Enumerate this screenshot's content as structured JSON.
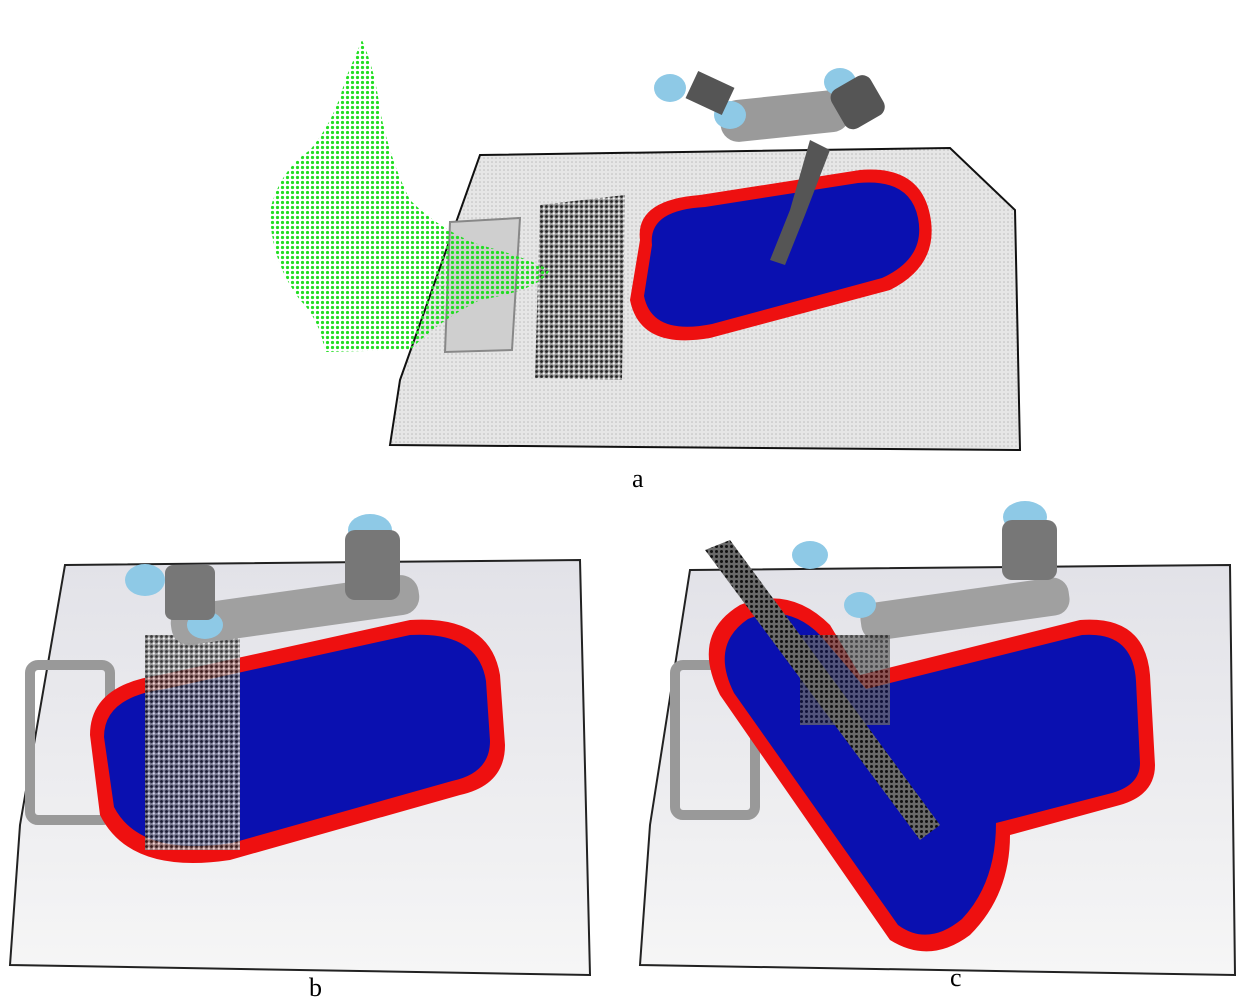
{
  "figure": {
    "panels": [
      {
        "label": "a"
      },
      {
        "label": "b"
      },
      {
        "label": "c"
      }
    ]
  },
  "colors": {
    "workspace_surface": "#d9d9d9",
    "safety_zone_inner": "#0a10b0",
    "safety_zone_border": "#ee1010",
    "human_points": "#22dd22",
    "robot_joint": "#8ec9e6",
    "robot_link": "#8a8a8a",
    "tool": "#2a2a2a"
  }
}
